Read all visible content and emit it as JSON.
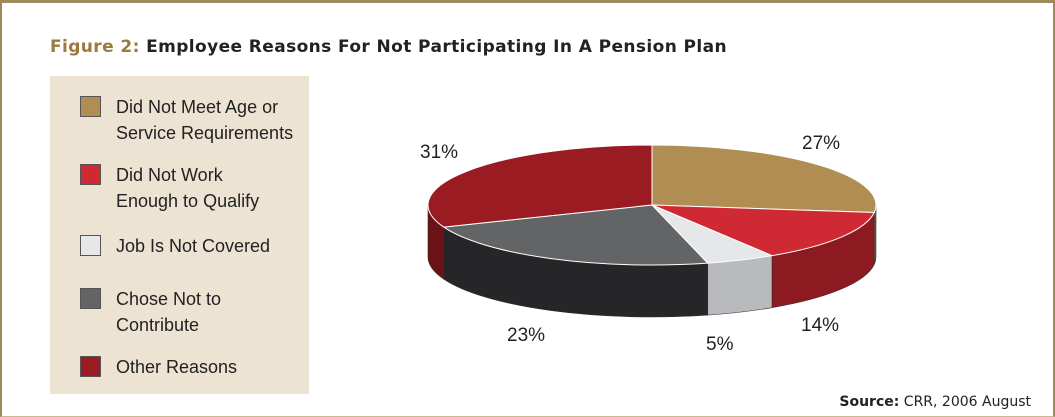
{
  "figure": {
    "number_label": "Figure 2:",
    "title": "Employee Reasons For Not Participating In A Pension Plan"
  },
  "source": {
    "key": "Source:",
    "text": "CRR, 2006 August"
  },
  "chart_data": {
    "type": "pie",
    "style": "3d",
    "legend_position": "left",
    "slices": [
      {
        "label": "Did Not Meet Age or\nService Requirements",
        "value": 27,
        "value_label": "27%",
        "color": "#b08d52",
        "side_color": "#7a6035"
      },
      {
        "label": "Did Not Work\nEnough to Qualify",
        "value": 14,
        "value_label": "14%",
        "color": "#cf2a34",
        "side_color": "#8c1a20"
      },
      {
        "label": "Job Is Not Covered",
        "value": 5,
        "value_label": "5%",
        "color": "#e5e7e9",
        "side_color": "#b8babd"
      },
      {
        "label": "Chose Not to\nContribute",
        "value": 23,
        "value_label": "23%",
        "color": "#636466",
        "side_color": "#262527"
      },
      {
        "label": "Other Reasons",
        "value": 31,
        "value_label": "31%",
        "color": "#9a1c22",
        "side_color": "#6b1217"
      }
    ]
  }
}
